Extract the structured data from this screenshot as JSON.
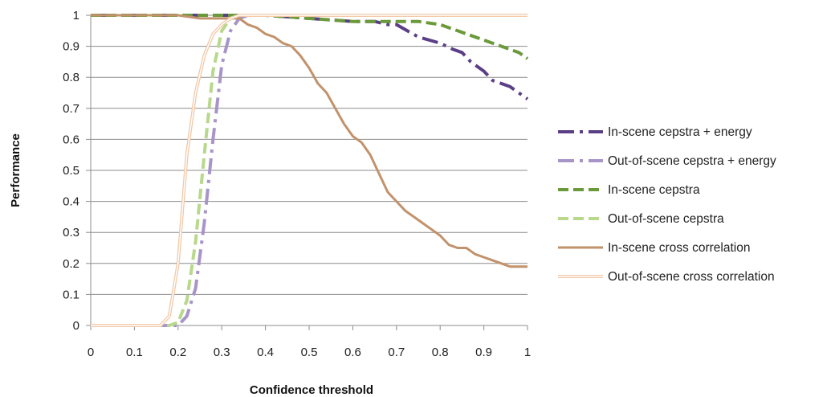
{
  "chart_data": {
    "type": "line",
    "title": "",
    "xlabel": "Confidence threshold",
    "ylabel": "Performance",
    "xlim": [
      0,
      1
    ],
    "ylim": [
      0,
      1
    ],
    "x_ticks": [
      "0",
      "0.1",
      "0.2",
      "0.3",
      "0.4",
      "0.5",
      "0.6",
      "0.7",
      "0.8",
      "0.9",
      "1"
    ],
    "y_ticks": [
      "0",
      "0.1",
      "0.2",
      "0.3",
      "0.4",
      "0.5",
      "0.6",
      "0.7",
      "0.8",
      "0.9",
      "1"
    ],
    "grid": "horizontal",
    "legend_position": "right",
    "series": [
      {
        "name": "In-scene cepstra + energy",
        "color": "#5b3f86",
        "style": "long-dash-dot",
        "points": [
          [
            0,
            1
          ],
          [
            0.1,
            1
          ],
          [
            0.2,
            1
          ],
          [
            0.3,
            1
          ],
          [
            0.35,
            1
          ],
          [
            0.4,
            1
          ],
          [
            0.5,
            0.99
          ],
          [
            0.6,
            0.98
          ],
          [
            0.65,
            0.98
          ],
          [
            0.68,
            0.97
          ],
          [
            0.7,
            0.97
          ],
          [
            0.75,
            0.93
          ],
          [
            0.8,
            0.91
          ],
          [
            0.83,
            0.89
          ],
          [
            0.85,
            0.88
          ],
          [
            0.87,
            0.85
          ],
          [
            0.9,
            0.82
          ],
          [
            0.92,
            0.79
          ],
          [
            0.96,
            0.77
          ],
          [
            1,
            0.73
          ]
        ]
      },
      {
        "name": "Out-of-scene cepstra + energy",
        "color": "#a895c8",
        "style": "long-dash-dot",
        "points": [
          [
            0,
            0
          ],
          [
            0.1,
            0
          ],
          [
            0.15,
            0
          ],
          [
            0.2,
            0
          ],
          [
            0.22,
            0.03
          ],
          [
            0.24,
            0.12
          ],
          [
            0.26,
            0.33
          ],
          [
            0.28,
            0.6
          ],
          [
            0.3,
            0.84
          ],
          [
            0.32,
            0.95
          ],
          [
            0.34,
            0.99
          ],
          [
            0.36,
            1
          ],
          [
            0.4,
            1
          ],
          [
            0.5,
            1
          ],
          [
            0.6,
            1
          ],
          [
            0.7,
            1
          ],
          [
            0.8,
            1
          ],
          [
            0.9,
            1
          ],
          [
            1,
            1
          ]
        ]
      },
      {
        "name": "In-scene cepstra",
        "color": "#6b9a3a",
        "style": "dash",
        "points": [
          [
            0,
            1
          ],
          [
            0.1,
            1
          ],
          [
            0.2,
            1
          ],
          [
            0.3,
            1
          ],
          [
            0.35,
            1
          ],
          [
            0.4,
            1
          ],
          [
            0.5,
            0.99
          ],
          [
            0.6,
            0.98
          ],
          [
            0.7,
            0.98
          ],
          [
            0.75,
            0.98
          ],
          [
            0.8,
            0.97
          ],
          [
            0.84,
            0.95
          ],
          [
            0.88,
            0.93
          ],
          [
            0.92,
            0.91
          ],
          [
            0.96,
            0.89
          ],
          [
            0.98,
            0.88
          ],
          [
            1,
            0.86
          ]
        ]
      },
      {
        "name": "Out-of-scene cepstra",
        "color": "#b8d88c",
        "style": "dash",
        "points": [
          [
            0,
            0
          ],
          [
            0.1,
            0
          ],
          [
            0.18,
            0
          ],
          [
            0.2,
            0.01
          ],
          [
            0.22,
            0.08
          ],
          [
            0.24,
            0.27
          ],
          [
            0.26,
            0.55
          ],
          [
            0.28,
            0.82
          ],
          [
            0.3,
            0.95
          ],
          [
            0.32,
            0.99
          ],
          [
            0.34,
            1
          ],
          [
            0.4,
            1
          ],
          [
            0.5,
            1
          ],
          [
            0.6,
            1
          ],
          [
            0.7,
            1
          ],
          [
            0.8,
            1
          ],
          [
            0.9,
            1
          ],
          [
            1,
            1
          ]
        ]
      },
      {
        "name": "In-scene cross correlation",
        "color": "#c1926b",
        "style": "solid",
        "points": [
          [
            0,
            1
          ],
          [
            0.1,
            1
          ],
          [
            0.2,
            1
          ],
          [
            0.25,
            0.99
          ],
          [
            0.3,
            0.99
          ],
          [
            0.34,
            0.99
          ],
          [
            0.36,
            0.97
          ],
          [
            0.38,
            0.96
          ],
          [
            0.4,
            0.94
          ],
          [
            0.42,
            0.93
          ],
          [
            0.44,
            0.91
          ],
          [
            0.46,
            0.9
          ],
          [
            0.48,
            0.87
          ],
          [
            0.5,
            0.83
          ],
          [
            0.52,
            0.78
          ],
          [
            0.54,
            0.75
          ],
          [
            0.56,
            0.7
          ],
          [
            0.58,
            0.65
          ],
          [
            0.6,
            0.61
          ],
          [
            0.62,
            0.59
          ],
          [
            0.64,
            0.55
          ],
          [
            0.66,
            0.49
          ],
          [
            0.68,
            0.43
          ],
          [
            0.7,
            0.4
          ],
          [
            0.72,
            0.37
          ],
          [
            0.74,
            0.35
          ],
          [
            0.76,
            0.33
          ],
          [
            0.78,
            0.31
          ],
          [
            0.8,
            0.29
          ],
          [
            0.82,
            0.26
          ],
          [
            0.84,
            0.25
          ],
          [
            0.86,
            0.25
          ],
          [
            0.88,
            0.23
          ],
          [
            0.9,
            0.22
          ],
          [
            0.92,
            0.21
          ],
          [
            0.94,
            0.2
          ],
          [
            0.96,
            0.19
          ],
          [
            0.98,
            0.19
          ],
          [
            1,
            0.19
          ]
        ]
      },
      {
        "name": "Out-of-scene cross correlation",
        "color": "#f2c9a8",
        "style": "double",
        "points": [
          [
            0,
            0
          ],
          [
            0.1,
            0
          ],
          [
            0.16,
            0
          ],
          [
            0.18,
            0.03
          ],
          [
            0.2,
            0.2
          ],
          [
            0.22,
            0.55
          ],
          [
            0.24,
            0.75
          ],
          [
            0.26,
            0.87
          ],
          [
            0.28,
            0.94
          ],
          [
            0.3,
            0.97
          ],
          [
            0.32,
            0.99
          ],
          [
            0.34,
            1
          ],
          [
            0.4,
            1
          ],
          [
            0.5,
            1
          ],
          [
            0.6,
            1
          ],
          [
            0.7,
            1
          ],
          [
            0.8,
            1
          ],
          [
            0.9,
            1
          ],
          [
            1,
            1
          ]
        ]
      }
    ]
  }
}
